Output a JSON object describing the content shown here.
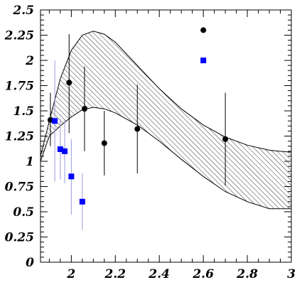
{
  "chart_data": {
    "type": "scatter",
    "title": "",
    "xlabel": "",
    "ylabel": "",
    "xlim": [
      1.86,
      3.0
    ],
    "ylim": [
      0,
      2.5
    ],
    "grid": false,
    "x_ticks": [
      {
        "value": 2.0,
        "label": "2"
      },
      {
        "value": 2.2,
        "label": "2.2"
      },
      {
        "value": 2.4,
        "label": "2.4"
      },
      {
        "value": 2.6,
        "label": "2.6"
      },
      {
        "value": 2.8,
        "label": "2.8"
      },
      {
        "value": 3.0,
        "label": "3"
      }
    ],
    "y_ticks": [
      {
        "value": 0,
        "label": "0"
      },
      {
        "value": 0.25,
        "label": "0.25"
      },
      {
        "value": 0.5,
        "label": "0.5"
      },
      {
        "value": 0.75,
        "label": "0.75"
      },
      {
        "value": 1.0,
        "label": "1"
      },
      {
        "value": 1.25,
        "label": "1.25"
      },
      {
        "value": 1.5,
        "label": "1.5"
      },
      {
        "value": 1.75,
        "label": "1.75"
      },
      {
        "value": 2.0,
        "label": "2"
      },
      {
        "value": 2.25,
        "label": "2.25"
      },
      {
        "value": 2.5,
        "label": "2.5"
      }
    ],
    "band": {
      "fill": "hatched",
      "x": [
        1.86,
        1.9,
        1.95,
        2.0,
        2.05,
        2.1,
        2.15,
        2.2,
        2.3,
        2.4,
        2.5,
        2.6,
        2.7,
        2.8,
        2.9,
        3.0
      ],
      "upper": [
        1.05,
        1.4,
        1.82,
        2.1,
        2.25,
        2.29,
        2.26,
        2.18,
        1.95,
        1.72,
        1.52,
        1.36,
        1.24,
        1.16,
        1.11,
        1.09
      ],
      "lower": [
        1.0,
        1.25,
        1.35,
        1.44,
        1.51,
        1.535,
        1.52,
        1.48,
        1.36,
        1.2,
        1.02,
        0.85,
        0.7,
        0.6,
        0.53,
        0.53
      ]
    },
    "series": [
      {
        "marker": "circle",
        "color": "#000000",
        "error_color": "#000000",
        "points": [
          {
            "x": 1.905,
            "y": 1.41,
            "ylo": 1.15,
            "yhi": 1.68
          },
          {
            "x": 1.99,
            "y": 1.78,
            "ylo": 1.28,
            "yhi": 2.26
          },
          {
            "x": 2.06,
            "y": 1.52,
            "ylo": 1.1,
            "yhi": 1.94
          },
          {
            "x": 2.15,
            "y": 1.18,
            "ylo": 0.86,
            "yhi": 1.5
          },
          {
            "x": 2.3,
            "y": 1.32,
            "ylo": 0.88,
            "yhi": 1.76
          },
          {
            "x": 2.6,
            "y": 2.3,
            "ylo": null,
            "yhi": null
          },
          {
            "x": 2.7,
            "y": 1.22,
            "ylo": 0.76,
            "yhi": 1.68
          }
        ]
      },
      {
        "marker": "square",
        "color": "#0000ff",
        "error_color": "#9a9ad8",
        "points": [
          {
            "x": 1.925,
            "y": 1.4,
            "ylo": 0.8,
            "yhi": 2.0
          },
          {
            "x": 1.95,
            "y": 1.12,
            "ylo": 0.82,
            "yhi": 1.42
          },
          {
            "x": 1.97,
            "y": 1.1,
            "ylo": 0.78,
            "yhi": 1.42
          },
          {
            "x": 2.0,
            "y": 0.85,
            "ylo": 0.47,
            "yhi": 1.22
          },
          {
            "x": 2.05,
            "y": 0.6,
            "ylo": 0.32,
            "yhi": 0.88
          },
          {
            "x": 2.6,
            "y": 2.0,
            "ylo": null,
            "yhi": null
          }
        ]
      }
    ]
  }
}
